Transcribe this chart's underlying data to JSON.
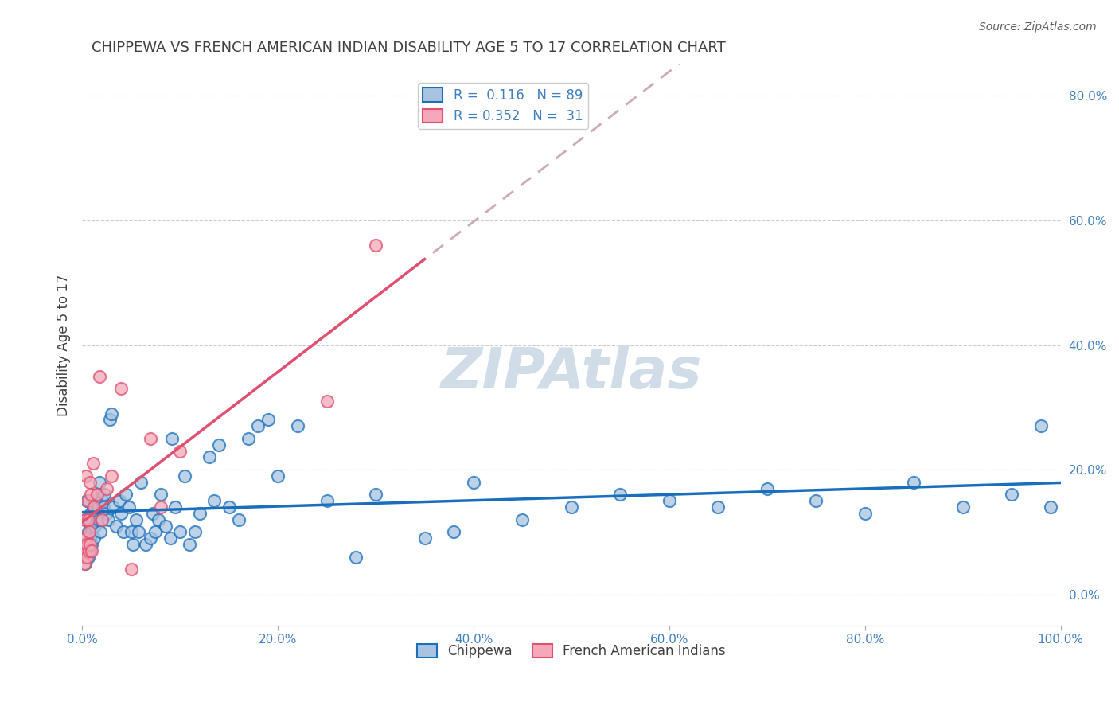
{
  "title": "CHIPPEWA VS FRENCH AMERICAN INDIAN DISABILITY AGE 5 TO 17 CORRELATION CHART",
  "source": "Source: ZipAtlas.com",
  "xlabel": "",
  "ylabel": "Disability Age 5 to 17",
  "chippewa_R": 0.116,
  "chippewa_N": 89,
  "french_R": 0.352,
  "french_N": 31,
  "chippewa_color": "#a8c4e0",
  "chippewa_line_color": "#1a6fbd",
  "french_color": "#f4a8b8",
  "french_line_color": "#e05070",
  "french_trendline_color": "#ccaabb",
  "watermark_color": "#d0dce8",
  "title_color": "#404040",
  "axis_label_color": "#4080c0",
  "right_axis_color": "#4080c0",
  "chippewa_x": [
    0.002,
    0.003,
    0.003,
    0.005,
    0.005,
    0.006,
    0.006,
    0.007,
    0.008,
    0.008,
    0.009,
    0.009,
    0.01,
    0.01,
    0.011,
    0.012,
    0.012,
    0.013,
    0.013,
    0.014,
    0.015,
    0.016,
    0.017,
    0.018,
    0.019,
    0.02,
    0.02,
    0.022,
    0.023,
    0.025,
    0.027,
    0.028,
    0.03,
    0.032,
    0.035,
    0.038,
    0.04,
    0.042,
    0.045,
    0.048,
    0.05,
    0.052,
    0.055,
    0.058,
    0.06,
    0.065,
    0.07,
    0.072,
    0.075,
    0.078,
    0.08,
    0.085,
    0.09,
    0.092,
    0.095,
    0.1,
    0.105,
    0.11,
    0.115,
    0.12,
    0.13,
    0.135,
    0.14,
    0.15,
    0.16,
    0.17,
    0.18,
    0.19,
    0.2,
    0.22,
    0.25,
    0.28,
    0.3,
    0.35,
    0.38,
    0.4,
    0.45,
    0.5,
    0.55,
    0.6,
    0.65,
    0.7,
    0.75,
    0.8,
    0.85,
    0.9,
    0.95,
    0.98,
    0.99
  ],
  "chippewa_y": [
    0.08,
    0.12,
    0.05,
    0.15,
    0.08,
    0.1,
    0.06,
    0.12,
    0.09,
    0.07,
    0.11,
    0.13,
    0.1,
    0.08,
    0.14,
    0.12,
    0.09,
    0.11,
    0.15,
    0.13,
    0.16,
    0.14,
    0.12,
    0.18,
    0.1,
    0.15,
    0.12,
    0.14,
    0.16,
    0.13,
    0.12,
    0.28,
    0.29,
    0.14,
    0.11,
    0.15,
    0.13,
    0.1,
    0.16,
    0.14,
    0.1,
    0.08,
    0.12,
    0.1,
    0.18,
    0.08,
    0.09,
    0.13,
    0.1,
    0.12,
    0.16,
    0.11,
    0.09,
    0.25,
    0.14,
    0.1,
    0.19,
    0.08,
    0.1,
    0.13,
    0.22,
    0.15,
    0.24,
    0.14,
    0.12,
    0.25,
    0.27,
    0.28,
    0.19,
    0.27,
    0.15,
    0.06,
    0.16,
    0.09,
    0.1,
    0.18,
    0.12,
    0.14,
    0.16,
    0.15,
    0.14,
    0.17,
    0.15,
    0.13,
    0.18,
    0.14,
    0.16,
    0.27,
    0.14
  ],
  "french_x": [
    0.001,
    0.002,
    0.002,
    0.003,
    0.003,
    0.004,
    0.004,
    0.005,
    0.005,
    0.006,
    0.006,
    0.007,
    0.007,
    0.008,
    0.008,
    0.009,
    0.01,
    0.011,
    0.012,
    0.015,
    0.018,
    0.02,
    0.025,
    0.03,
    0.04,
    0.05,
    0.07,
    0.08,
    0.1,
    0.25,
    0.3
  ],
  "french_y": [
    0.06,
    0.08,
    0.05,
    0.12,
    0.07,
    0.19,
    0.09,
    0.08,
    0.06,
    0.15,
    0.12,
    0.1,
    0.07,
    0.18,
    0.08,
    0.16,
    0.07,
    0.21,
    0.14,
    0.16,
    0.35,
    0.12,
    0.17,
    0.19,
    0.33,
    0.04,
    0.25,
    0.14,
    0.23,
    0.31,
    0.56
  ],
  "xlim": [
    0.0,
    1.0
  ],
  "ylim": [
    -0.05,
    0.85
  ],
  "xticks": [
    0.0,
    0.2,
    0.4,
    0.6,
    0.8,
    1.0
  ],
  "xtick_labels": [
    "0.0%",
    "20.0%",
    "40.0%",
    "60.0%",
    "80.0%",
    "100.0%"
  ],
  "yticks_right": [
    0.0,
    0.2,
    0.4,
    0.6,
    0.8
  ],
  "ytick_labels_right": [
    "0.0%",
    "20.0%",
    "40.0%",
    "60.0%",
    "80.0%"
  ],
  "marker_size": 120,
  "marker_linewidth": 1.5
}
